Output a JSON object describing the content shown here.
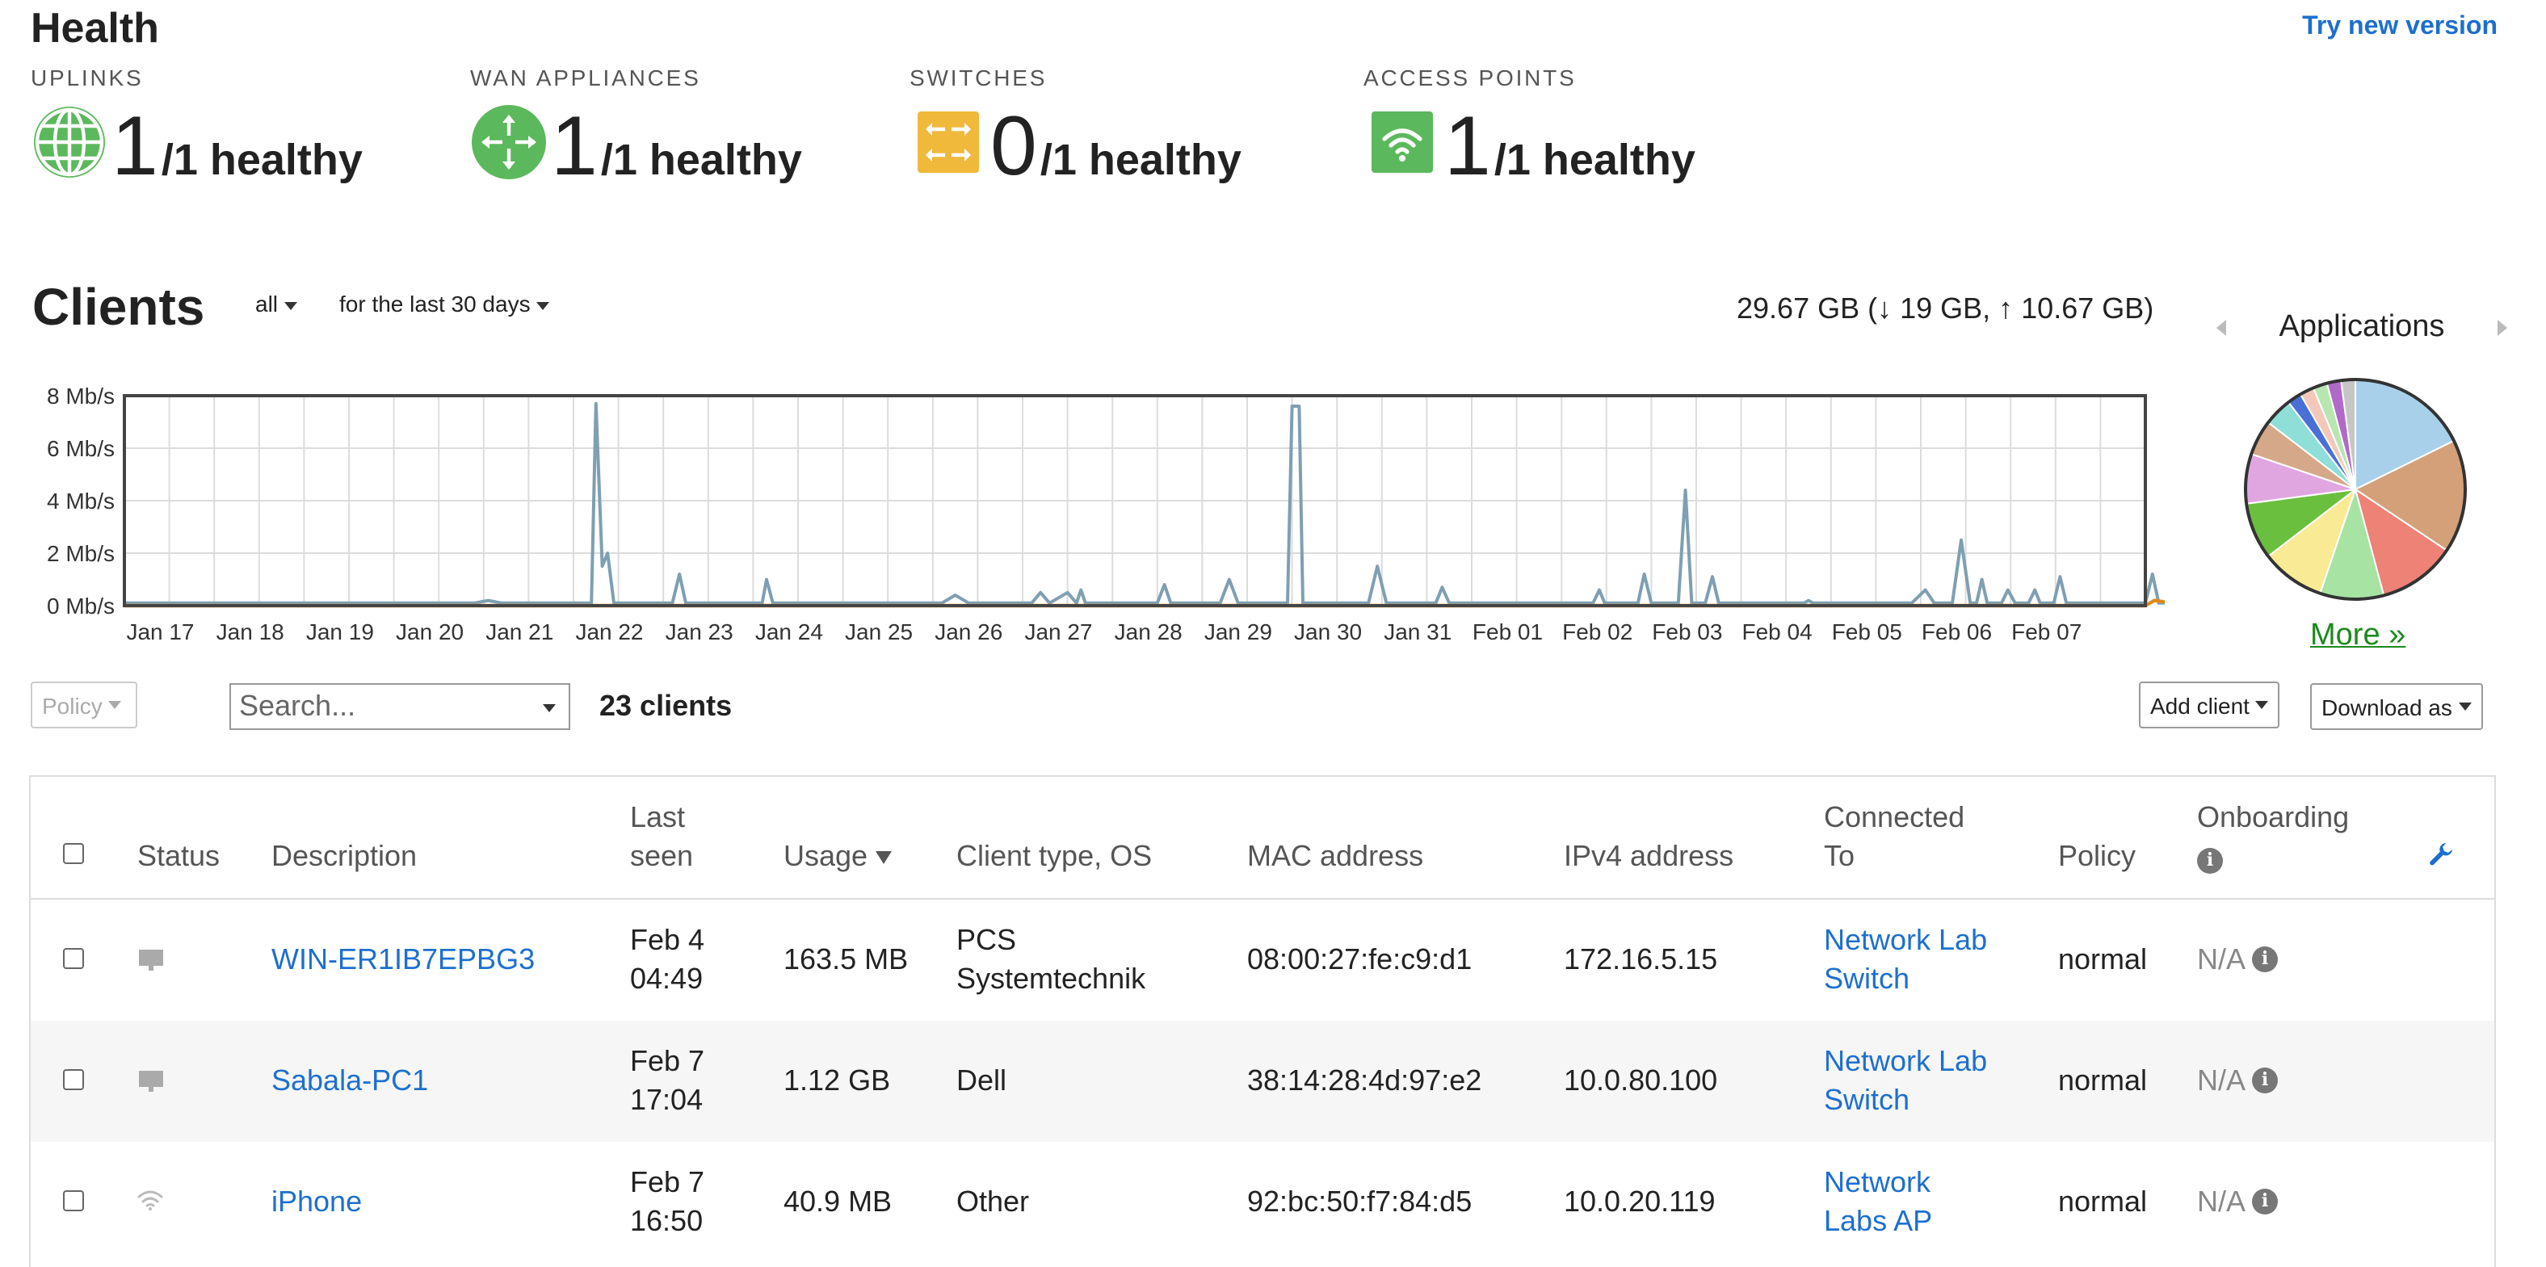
{
  "health": {
    "title": "Health",
    "try_new": "Try new version",
    "cards": [
      {
        "label": "UPLINKS",
        "healthy": "1",
        "total": "/1 healthy",
        "icon": "globe-icon",
        "color": "#5cb85c"
      },
      {
        "label": "WAN APPLIANCES",
        "healthy": "1",
        "total": "/1 healthy",
        "icon": "router-icon",
        "color": "#5cb85c"
      },
      {
        "label": "SWITCHES",
        "healthy": "0",
        "total": "/1 healthy",
        "icon": "switch-icon",
        "color": "#f0ad2e"
      },
      {
        "label": "ACCESS POINTS",
        "healthy": "1",
        "total": "/1 healthy",
        "icon": "wifi-icon",
        "color": "#5cb85c"
      }
    ]
  },
  "clients": {
    "title": "Clients",
    "filter": "all",
    "range": "for the last 30 days",
    "usage_total": "29.67 GB (↓ 19 GB, ↑ 10.67 GB)"
  },
  "applications": {
    "title": "Applications",
    "more": "More »",
    "slices": [
      {
        "value": 17,
        "color": "#a9d0ea"
      },
      {
        "value": 16,
        "color": "#d4a07a"
      },
      {
        "value": 11,
        "color": "#ee8277"
      },
      {
        "value": 9,
        "color": "#a7e3a3"
      },
      {
        "value": 9,
        "color": "#f9ea95"
      },
      {
        "value": 8,
        "color": "#6bbf3e"
      },
      {
        "value": 7,
        "color": "#e0a6e0"
      },
      {
        "value": 5,
        "color": "#d4a888"
      },
      {
        "value": 4,
        "color": "#8fded8"
      },
      {
        "value": 2,
        "color": "#4a6fd6"
      },
      {
        "value": 2,
        "color": "#f4c8b8"
      },
      {
        "value": 2,
        "color": "#b8e6b0"
      },
      {
        "value": 2,
        "color": "#b069c9"
      },
      {
        "value": 2,
        "color": "#c6c6c6"
      }
    ]
  },
  "chart_data": {
    "type": "line",
    "ylabel_ticks": [
      "0 Mb/s",
      "2 Mb/s",
      "4 Mb/s",
      "6 Mb/s",
      "8 Mb/s"
    ],
    "ylim": [
      0,
      8
    ],
    "x_labels": [
      "Jan 17",
      "Jan 18",
      "Jan 19",
      "Jan 20",
      "Jan 21",
      "Jan 22",
      "Jan 23",
      "Jan 24",
      "Jan 25",
      "Jan 26",
      "Jan 27",
      "Jan 28",
      "Jan 29",
      "Jan 30",
      "Jan 31",
      "Feb 01",
      "Feb 02",
      "Feb 03",
      "Feb 04",
      "Feb 05",
      "Feb 06",
      "Feb 07"
    ],
    "series": [
      {
        "color": "#7f9fb2",
        "points": [
          [
            0,
            0.1
          ],
          [
            3,
            0.1
          ],
          [
            3.9,
            0.1
          ],
          [
            4.05,
            0.2
          ],
          [
            4.2,
            0.1
          ],
          [
            5,
            0.1
          ],
          [
            5.2,
            0.1
          ],
          [
            5.25,
            7.7
          ],
          [
            5.32,
            1.5
          ],
          [
            5.38,
            2.0
          ],
          [
            5.45,
            0.1
          ],
          [
            6.1,
            0.1
          ],
          [
            6.18,
            1.2
          ],
          [
            6.25,
            0.1
          ],
          [
            7.1,
            0.1
          ],
          [
            7.15,
            1.0
          ],
          [
            7.22,
            0.1
          ],
          [
            9.1,
            0.1
          ],
          [
            9.25,
            0.4
          ],
          [
            9.4,
            0.1
          ],
          [
            10.1,
            0.1
          ],
          [
            10.2,
            0.5
          ],
          [
            10.3,
            0.1
          ],
          [
            10.5,
            0.5
          ],
          [
            10.6,
            0.1
          ],
          [
            10.65,
            0.6
          ],
          [
            10.7,
            0.1
          ],
          [
            11.5,
            0.1
          ],
          [
            11.58,
            0.8
          ],
          [
            11.65,
            0.1
          ],
          [
            12.2,
            0.1
          ],
          [
            12.3,
            1.0
          ],
          [
            12.4,
            0.1
          ],
          [
            12.95,
            0.1
          ],
          [
            13.0,
            7.6
          ],
          [
            13.08,
            7.6
          ],
          [
            13.12,
            0.1
          ],
          [
            13.85,
            0.1
          ],
          [
            13.95,
            1.5
          ],
          [
            14.05,
            0.1
          ],
          [
            14.6,
            0.1
          ],
          [
            14.67,
            0.7
          ],
          [
            14.75,
            0.1
          ],
          [
            16.35,
            0.1
          ],
          [
            16.42,
            0.6
          ],
          [
            16.48,
            0.1
          ],
          [
            16.85,
            0.1
          ],
          [
            16.92,
            1.2
          ],
          [
            17.0,
            0.1
          ],
          [
            17.3,
            0.1
          ],
          [
            17.38,
            4.4
          ],
          [
            17.45,
            0.1
          ],
          [
            17.6,
            0.1
          ],
          [
            17.68,
            1.1
          ],
          [
            17.75,
            0.1
          ],
          [
            18.7,
            0.1
          ],
          [
            18.75,
            0.2
          ],
          [
            18.8,
            0.1
          ],
          [
            19.9,
            0.1
          ],
          [
            20.05,
            0.6
          ],
          [
            20.15,
            0.1
          ],
          [
            20.35,
            0.1
          ],
          [
            20.45,
            2.5
          ],
          [
            20.55,
            0.1
          ],
          [
            20.62,
            0.1
          ],
          [
            20.68,
            1.0
          ],
          [
            20.74,
            0.1
          ],
          [
            20.9,
            0.1
          ],
          [
            20.97,
            0.6
          ],
          [
            21.05,
            0.1
          ],
          [
            21.2,
            0.1
          ],
          [
            21.27,
            0.6
          ],
          [
            21.33,
            0.1
          ],
          [
            21.48,
            0.1
          ],
          [
            21.55,
            1.1
          ],
          [
            21.62,
            0.1
          ],
          [
            22.5,
            0.1
          ],
          [
            22.58,
            1.2
          ],
          [
            22.65,
            0.1
          ],
          [
            22.8,
            0.1
          ]
        ]
      },
      {
        "color": "#e08a1e",
        "points": [
          [
            0,
            0.0
          ],
          [
            22.5,
            0.0
          ],
          [
            22.6,
            0.2
          ],
          [
            22.8,
            0.1
          ]
        ]
      }
    ]
  },
  "toolbar": {
    "policy": "Policy",
    "search_placeholder": "Search...",
    "count": "23 clients",
    "add_client": "Add client",
    "download": "Download as"
  },
  "table": {
    "headers": {
      "status": "Status",
      "description": "Description",
      "last_seen_1": "Last",
      "last_seen_2": "seen",
      "usage": "Usage",
      "client_type": "Client type, OS",
      "mac": "MAC address",
      "ipv4": "IPv4 address",
      "connected_1": "Connected",
      "connected_2": "To",
      "policy": "Policy",
      "onboarding": "Onboarding"
    },
    "rows": [
      {
        "description": "WIN-ER1IB7EPBG3",
        "seen_date": "Feb 4",
        "seen_time": "04:49",
        "usage": "163.5 MB",
        "type_1": "PCS",
        "type_2": "Systemtechnik",
        "mac": "08:00:27:fe:c9:d1",
        "ipv4": "172.16.5.15",
        "conn_1": "Network Lab",
        "conn_2": "Switch",
        "policy": "normal",
        "onboarding": "N/A",
        "status_icon": "monitor-icon"
      },
      {
        "description": "Sabala-PC1",
        "seen_date": "Feb 7",
        "seen_time": "17:04",
        "usage": "1.12 GB",
        "type_1": "Dell",
        "type_2": "",
        "mac": "38:14:28:4d:97:e2",
        "ipv4": "10.0.80.100",
        "conn_1": "Network Lab",
        "conn_2": "Switch",
        "policy": "normal",
        "onboarding": "N/A",
        "status_icon": "monitor-icon"
      },
      {
        "description": "iPhone",
        "seen_date": "Feb 7",
        "seen_time": "16:50",
        "usage": "40.9 MB",
        "type_1": "Other",
        "type_2": "",
        "mac": "92:bc:50:f7:84:d5",
        "ipv4": "10.0.20.119",
        "conn_1": "Network",
        "conn_2": "Labs AP",
        "policy": "normal",
        "onboarding": "N/A",
        "status_icon": "wifi-icon"
      }
    ]
  }
}
